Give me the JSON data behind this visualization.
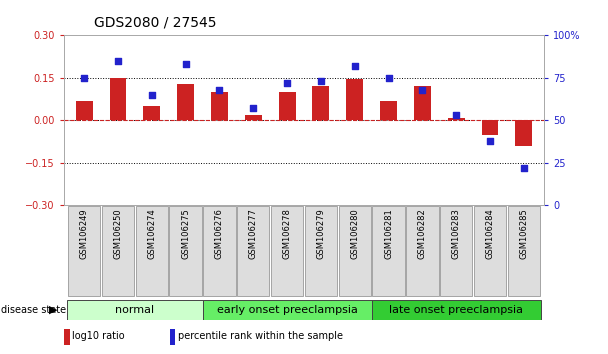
{
  "title": "GDS2080 / 27545",
  "samples": [
    "GSM106249",
    "GSM106250",
    "GSM106274",
    "GSM106275",
    "GSM106276",
    "GSM106277",
    "GSM106278",
    "GSM106279",
    "GSM106280",
    "GSM106281",
    "GSM106282",
    "GSM106283",
    "GSM106284",
    "GSM106285"
  ],
  "log10_ratio": [
    0.07,
    0.15,
    0.05,
    0.13,
    0.1,
    0.02,
    0.1,
    0.12,
    0.145,
    0.07,
    0.12,
    0.01,
    -0.05,
    -0.09
  ],
  "percentile_rank": [
    75,
    85,
    65,
    83,
    68,
    57,
    72,
    73,
    82,
    75,
    68,
    53,
    38,
    22
  ],
  "ylim_left": [
    -0.3,
    0.3
  ],
  "ylim_right": [
    0,
    100
  ],
  "bar_color": "#cc2222",
  "dot_color": "#2222cc",
  "background_color": "#ffffff",
  "groups": [
    {
      "label": "normal",
      "start": 0,
      "end": 3,
      "color": "#ccffcc"
    },
    {
      "label": "early onset preeclampsia",
      "start": 4,
      "end": 8,
      "color": "#66ee66"
    },
    {
      "label": "late onset preeclampsia",
      "start": 9,
      "end": 13,
      "color": "#33cc33"
    }
  ],
  "dotted_lines": [
    -0.15,
    0.15
  ],
  "yticks_left": [
    -0.3,
    -0.15,
    0.0,
    0.15,
    0.3
  ],
  "yticks_right": [
    0,
    25,
    50,
    75,
    100
  ],
  "legend_items": [
    {
      "label": "log10 ratio",
      "color": "#cc2222"
    },
    {
      "label": "percentile rank within the sample",
      "color": "#2222cc"
    }
  ],
  "title_fontsize": 10,
  "tick_fontsize": 7,
  "sample_fontsize": 6,
  "group_fontsize": 8,
  "legend_fontsize": 7
}
